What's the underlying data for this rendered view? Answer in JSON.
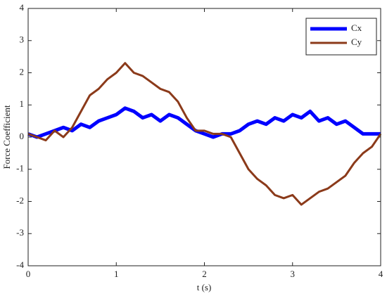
{
  "chart_data": {
    "type": "line",
    "xlabel": "t (s)",
    "ylabel": "Force Coefficient",
    "x": [
      0,
      0.1,
      0.2,
      0.3,
      0.4,
      0.5,
      0.6,
      0.7,
      0.8,
      0.9,
      1.0,
      1.1,
      1.2,
      1.3,
      1.4,
      1.5,
      1.6,
      1.7,
      1.8,
      1.9,
      2.0,
      2.1,
      2.2,
      2.3,
      2.4,
      2.5,
      2.6,
      2.7,
      2.8,
      2.9,
      3.0,
      3.1,
      3.2,
      3.3,
      3.4,
      3.5,
      3.6,
      3.7,
      3.8,
      3.9,
      4.0
    ],
    "series": [
      {
        "name": "Cx",
        "color": "#0000ff",
        "width": 5,
        "values": [
          0.1,
          0.0,
          0.1,
          0.2,
          0.3,
          0.2,
          0.4,
          0.3,
          0.5,
          0.6,
          0.7,
          0.9,
          0.8,
          0.6,
          0.7,
          0.5,
          0.7,
          0.6,
          0.4,
          0.2,
          0.1,
          0.0,
          0.1,
          0.1,
          0.2,
          0.4,
          0.5,
          0.4,
          0.6,
          0.5,
          0.7,
          0.6,
          0.8,
          0.5,
          0.6,
          0.4,
          0.5,
          0.3,
          0.1,
          0.1,
          0.1
        ]
      },
      {
        "name": "Cy",
        "color": "#8b3a1a",
        "width": 3,
        "values": [
          0.1,
          0.0,
          -0.1,
          0.2,
          0.0,
          0.3,
          0.8,
          1.3,
          1.5,
          1.8,
          2.0,
          2.3,
          2.0,
          1.9,
          1.7,
          1.5,
          1.4,
          1.1,
          0.6,
          0.2,
          0.2,
          0.1,
          0.1,
          0.0,
          -0.5,
          -1.0,
          -1.3,
          -1.5,
          -1.8,
          -1.9,
          -1.8,
          -2.1,
          -1.9,
          -1.7,
          -1.6,
          -1.4,
          -1.2,
          -0.8,
          -0.5,
          -0.3,
          0.1
        ]
      }
    ],
    "xlim": [
      0,
      4
    ],
    "xticks": [
      0,
      1,
      2,
      3,
      4
    ],
    "ylim": [
      -4,
      4
    ],
    "yticks": [
      -4,
      -3,
      -2,
      -1,
      0,
      1,
      2,
      3,
      4
    ],
    "grid": false,
    "legend": "top-right"
  }
}
